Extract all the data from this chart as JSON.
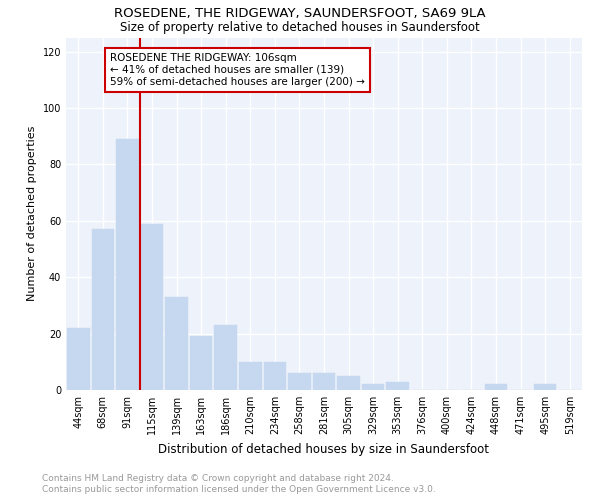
{
  "title1": "ROSEDENE, THE RIDGEWAY, SAUNDERSFOOT, SA69 9LA",
  "title2": "Size of property relative to detached houses in Saundersfoot",
  "xlabel": "Distribution of detached houses by size in Saundersfoot",
  "ylabel": "Number of detached properties",
  "footnote": "Contains HM Land Registry data © Crown copyright and database right 2024.\nContains public sector information licensed under the Open Government Licence v3.0.",
  "categories": [
    "44sqm",
    "68sqm",
    "91sqm",
    "115sqm",
    "139sqm",
    "163sqm",
    "186sqm",
    "210sqm",
    "234sqm",
    "258sqm",
    "281sqm",
    "305sqm",
    "329sqm",
    "353sqm",
    "376sqm",
    "400sqm",
    "424sqm",
    "448sqm",
    "471sqm",
    "495sqm",
    "519sqm"
  ],
  "values": [
    22,
    57,
    89,
    59,
    33,
    19,
    23,
    10,
    10,
    6,
    6,
    5,
    2,
    3,
    0,
    0,
    0,
    2,
    0,
    2,
    0
  ],
  "bar_color": "#c5d8f0",
  "bar_edge_color": "#c5d8f0",
  "vline_color": "#cc0000",
  "annotation_text": "ROSEDENE THE RIDGEWAY: 106sqm\n← 41% of detached houses are smaller (139)\n59% of semi-detached houses are larger (200) →",
  "annotation_box_color": "#ffffff",
  "annotation_box_edge": "#cc0000",
  "ylim": [
    0,
    125
  ],
  "yticks": [
    0,
    20,
    40,
    60,
    80,
    100,
    120
  ],
  "background_color": "#edf2fb",
  "grid_color": "#ffffff",
  "title1_fontsize": 9.5,
  "title2_fontsize": 8.5,
  "xlabel_fontsize": 8.5,
  "ylabel_fontsize": 8,
  "tick_fontsize": 7,
  "annot_fontsize": 7.5,
  "footnote_fontsize": 6.5
}
